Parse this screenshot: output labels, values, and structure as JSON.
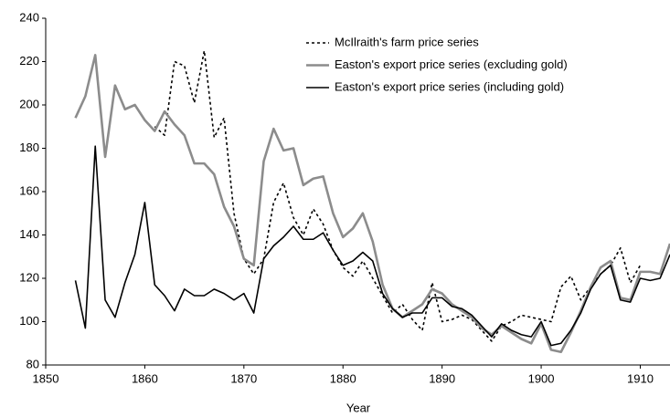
{
  "chart_data": {
    "type": "line",
    "x_label": "Year",
    "x": [
      1853,
      1854,
      1855,
      1856,
      1857,
      1858,
      1859,
      1860,
      1861,
      1862,
      1863,
      1864,
      1865,
      1866,
      1867,
      1868,
      1869,
      1870,
      1871,
      1872,
      1873,
      1874,
      1875,
      1876,
      1877,
      1878,
      1879,
      1880,
      1881,
      1882,
      1883,
      1884,
      1885,
      1886,
      1887,
      1888,
      1889,
      1890,
      1891,
      1892,
      1893,
      1894,
      1895,
      1896,
      1897,
      1898,
      1899,
      1900,
      1901,
      1902,
      1903,
      1904,
      1905,
      1906,
      1907,
      1908,
      1909,
      1910,
      1911,
      1912,
      1913
    ],
    "series": [
      {
        "name": "McIlraith's farm price series",
        "color": "#000000",
        "style": "dotted",
        "values": [
          null,
          null,
          null,
          null,
          null,
          null,
          null,
          null,
          190,
          186,
          220,
          218,
          201,
          225,
          185,
          194,
          150,
          129,
          122,
          129,
          155,
          164,
          148,
          140,
          152,
          145,
          133,
          125,
          121,
          128,
          120,
          112,
          104,
          108,
          101,
          96,
          118,
          100,
          101,
          103,
          101,
          96,
          91,
          98,
          100,
          103,
          102,
          101,
          100,
          116,
          121,
          110,
          116,
          122,
          126,
          134,
          118,
          126,
          null,
          null,
          null
        ]
      },
      {
        "name": "Easton's export price series (excluding gold)",
        "color": "#8c8c8c",
        "style": "solid-thick",
        "values": [
          194,
          204,
          223,
          176,
          209,
          198,
          200,
          193,
          188,
          197,
          191,
          186,
          173,
          173,
          168,
          153,
          144,
          129,
          126,
          174,
          189,
          179,
          180,
          163,
          166,
          167,
          150,
          139,
          143,
          150,
          137,
          117,
          106,
          102,
          105,
          108,
          115,
          113,
          108,
          105,
          102,
          97,
          94,
          98,
          95,
          92,
          90,
          99,
          87,
          86,
          95,
          105,
          116,
          125,
          128,
          111,
          110,
          123,
          123,
          122,
          136
        ]
      },
      {
        "name": "Easton's export price series (including gold)",
        "color": "#000000",
        "style": "solid",
        "values": [
          119,
          97,
          181,
          110,
          102,
          118,
          131,
          155,
          117,
          112,
          105,
          115,
          112,
          112,
          115,
          113,
          110,
          113,
          104,
          129,
          135,
          139,
          144,
          138,
          138,
          141,
          133,
          126,
          128,
          132,
          128,
          113,
          106,
          102,
          104,
          104,
          111,
          111,
          107,
          106,
          103,
          98,
          93,
          99,
          96,
          94,
          93,
          100,
          89,
          90,
          96,
          104,
          115,
          122,
          126,
          110,
          109,
          120,
          119,
          120,
          131
        ]
      }
    ],
    "xlim": [
      1850,
      1913
    ],
    "xticks": [
      1850,
      1860,
      1870,
      1880,
      1890,
      1900,
      1910
    ],
    "ylim": [
      80,
      240
    ],
    "yticks": [
      80,
      100,
      120,
      140,
      160,
      180,
      200,
      220,
      240
    ],
    "grid": false,
    "legend": "upper right"
  }
}
